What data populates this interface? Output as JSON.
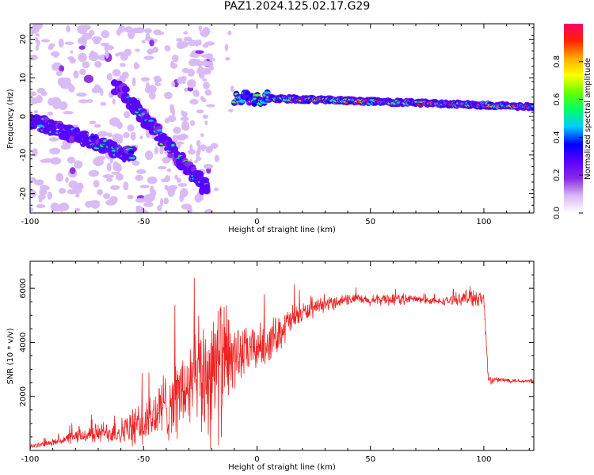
{
  "title": "PAZ1.2024.125.02.17.G29",
  "chart_data": [
    {
      "type": "heatmap",
      "xlabel": "Height of straight line (km)",
      "ylabel": "Frequency (Hz)",
      "xlim": [
        -100,
        122
      ],
      "ylim": [
        -25,
        24
      ],
      "xticks": [
        -100,
        -50,
        0,
        50,
        100
      ],
      "xticklabels": [
        "-100",
        "-50",
        "0",
        "50",
        "100"
      ],
      "yticks": [
        -20,
        -10,
        0,
        10,
        20
      ],
      "yticklabels": [
        "-20",
        "-10",
        "0",
        "10",
        "20"
      ],
      "colorbar": {
        "label": "Normalized spectral amplitude",
        "range": [
          0,
          1
        ],
        "ticks": [
          0,
          0.2,
          0.4,
          0.6,
          0.8
        ],
        "ticklabels": [
          "0.0",
          "0.2",
          "0.4",
          "0.6",
          "0.8"
        ],
        "colors": [
          "#ffffff",
          "#d8b8f4",
          "#8a2be2",
          "#5a00ff",
          "#0000ff",
          "#00ccff",
          "#00ff66",
          "#66ff00",
          "#ffff00",
          "#ffaa00",
          "#ff2200",
          "#ff0066"
        ]
      },
      "features": [
        {
          "name": "main-ridge",
          "x": [
            -10,
            122
          ],
          "freq": [
            5,
            2.5
          ],
          "amplitude": "high"
        },
        {
          "name": "lower-branch",
          "x": [
            -100,
            -55
          ],
          "freq": [
            -1,
            -10
          ],
          "amplitude": "medium"
        },
        {
          "name": "upper-branch",
          "x": [
            -62,
            -22
          ],
          "freq": [
            8,
            -19
          ],
          "amplitude": "medium"
        }
      ]
    },
    {
      "type": "line",
      "xlabel": "Height of straight line (km)",
      "ylabel": "SNR (10 * v/v)",
      "xlim": [
        -100,
        122
      ],
      "ylim": [
        0,
        7000
      ],
      "xticks": [
        -100,
        -50,
        0,
        50,
        100
      ],
      "xticklabels": [
        "-100",
        "-50",
        "0",
        "50",
        "100"
      ],
      "yticks": [
        2000,
        4000,
        6000
      ],
      "yticklabels": [
        "2000",
        "4000",
        "6000"
      ],
      "color": "#ee2222",
      "series": [
        {
          "x": [
            -100,
            -90,
            -80,
            -70,
            -60,
            -50,
            -45,
            -40,
            -35,
            -30,
            -25,
            -20,
            -15,
            -10,
            -5,
            0,
            5,
            10,
            15,
            20,
            25,
            30,
            35,
            40,
            45,
            50,
            55,
            60,
            70,
            80,
            90,
            95,
            100,
            102,
            105,
            110,
            122
          ],
          "y": [
            150,
            300,
            500,
            650,
            700,
            950,
            1300,
            1700,
            2000,
            2300,
            2700,
            2900,
            3200,
            3500,
            3600,
            3800,
            4000,
            4400,
            4800,
            5100,
            5200,
            5400,
            5500,
            5600,
            5600,
            5500,
            5600,
            5600,
            5600,
            5500,
            5600,
            5700,
            5600,
            2600,
            2600,
            2600,
            2550
          ],
          "noise": [
            80,
            150,
            300,
            450,
            600,
            1000,
            1300,
            1600,
            1800,
            2000,
            2600,
            3200,
            3000,
            1500,
            1100,
            1000,
            950,
            800,
            700,
            450,
            350,
            300,
            300,
            250,
            220,
            220,
            250,
            300,
            180,
            150,
            250,
            500,
            300,
            250,
            120,
            100,
            80
          ]
        }
      ]
    }
  ]
}
